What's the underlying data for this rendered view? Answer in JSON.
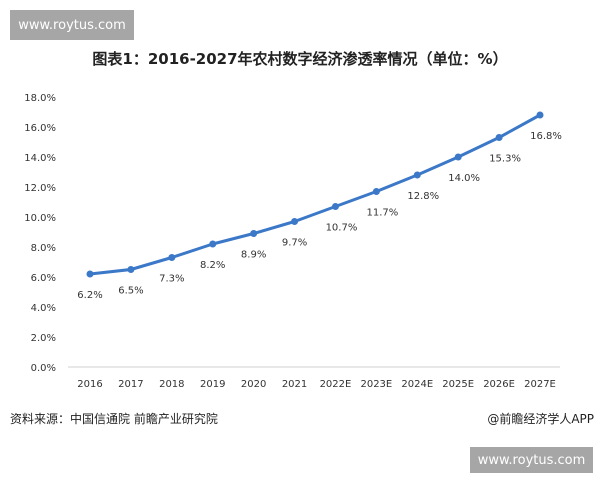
{
  "watermark": "www.roytus.com",
  "footer": {
    "source": "资料来源：中国信通院 前瞻产业研究院",
    "credit": "@前瞻经济学人APP"
  },
  "chart_data": {
    "type": "line",
    "title": "图表1：2016-2027年农村数字经济渗透率情况（单位：%）",
    "categories": [
      "2016",
      "2017",
      "2018",
      "2019",
      "2020",
      "2021",
      "2022E",
      "2023E",
      "2024E",
      "2025E",
      "2026E",
      "2027E"
    ],
    "values": [
      6.2,
      6.5,
      7.3,
      8.2,
      8.9,
      9.7,
      10.7,
      11.7,
      12.8,
      14.0,
      15.3,
      16.8
    ],
    "data_labels": [
      "6.2%",
      "6.5%",
      "7.3%",
      "8.2%",
      "8.9%",
      "9.7%",
      "10.7%",
      "11.7%",
      "12.8%",
      "14.0%",
      "15.3%",
      "16.8%"
    ],
    "y_ticks": [
      "0.0%",
      "2.0%",
      "4.0%",
      "6.0%",
      "8.0%",
      "10.0%",
      "12.0%",
      "14.0%",
      "16.0%",
      "18.0%"
    ],
    "ylim": [
      0,
      18
    ],
    "grid": false,
    "color": "#3b78c8"
  }
}
